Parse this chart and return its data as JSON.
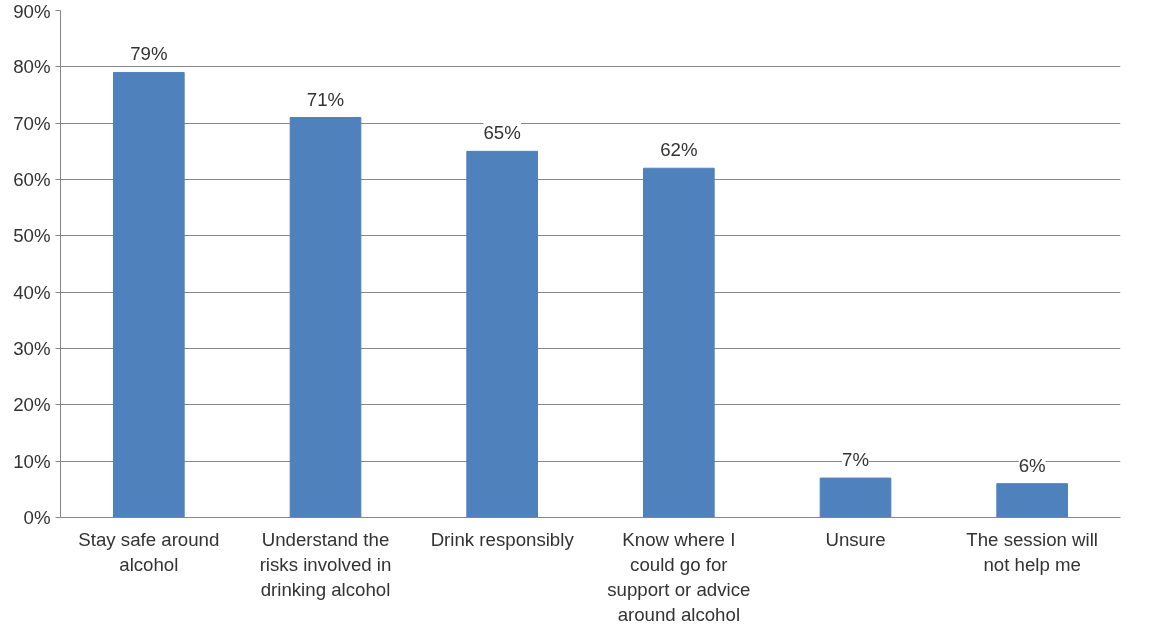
{
  "chart_data": {
    "type": "bar",
    "categories": [
      "Stay safe around alcohol",
      "Understand the risks involved in drinking alcohol",
      "Drink responsibly",
      "Know where I could go for support or advice around alcohol",
      "Unsure",
      "The session will not help me"
    ],
    "values": [
      79,
      71,
      65,
      62,
      7,
      6
    ],
    "value_labels": [
      "79%",
      "71%",
      "65%",
      "62%",
      "7%",
      "6%"
    ],
    "color": "#4f81bd",
    "ylim": [
      0,
      90
    ],
    "yticks": [
      {
        "value": 0,
        "label": "0%"
      },
      {
        "value": 10,
        "label": "10%"
      },
      {
        "value": 20,
        "label": "20%"
      },
      {
        "value": 30,
        "label": "30%"
      },
      {
        "value": 40,
        "label": "40%"
      },
      {
        "value": 50,
        "label": "50%"
      },
      {
        "value": 60,
        "label": "60%"
      },
      {
        "value": 70,
        "label": "70%"
      },
      {
        "value": 80,
        "label": "80%"
      },
      {
        "value": 90,
        "label": "90%"
      }
    ],
    "grid": "y"
  }
}
